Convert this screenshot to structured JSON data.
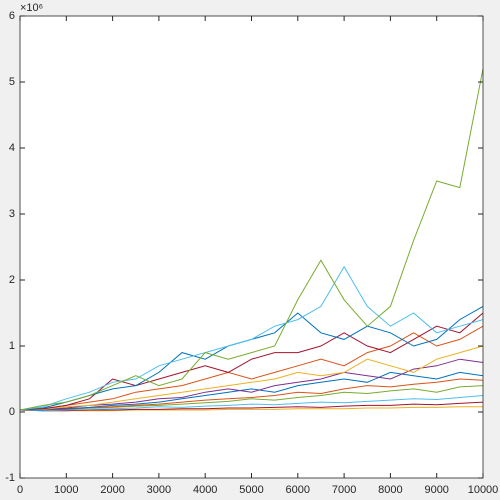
{
  "chart_data": {
    "type": "line",
    "y_exponent": "×10⁶",
    "x": [
      0,
      500,
      1000,
      1500,
      2000,
      2500,
      3000,
      3500,
      4000,
      4500,
      5000,
      5500,
      6000,
      6500,
      7000,
      7500,
      8000,
      8500,
      9000,
      9500,
      10000
    ],
    "series": [
      {
        "color": "#edb120",
        "values": [
          0.03,
          0.02,
          0.02,
          0.02,
          0.02,
          0.03,
          0.03,
          0.03,
          0.03,
          0.04,
          0.04,
          0.04,
          0.05,
          0.05,
          0.05,
          0.06,
          0.06,
          0.07,
          0.07,
          0.08,
          0.08
        ]
      },
      {
        "color": "#a2142f",
        "values": [
          0.03,
          0.02,
          0.02,
          0.03,
          0.03,
          0.04,
          0.04,
          0.05,
          0.05,
          0.06,
          0.06,
          0.07,
          0.08,
          0.07,
          0.09,
          0.1,
          0.1,
          0.12,
          0.11,
          0.13,
          0.15
        ]
      },
      {
        "color": "#4dbeee",
        "values": [
          0.03,
          0.02,
          0.03,
          0.04,
          0.05,
          0.06,
          0.08,
          0.07,
          0.09,
          0.1,
          0.12,
          0.11,
          0.13,
          0.15,
          0.14,
          0.16,
          0.18,
          0.2,
          0.19,
          0.22,
          0.25
        ]
      },
      {
        "color": "#77ac30",
        "values": [
          0.03,
          0.04,
          0.05,
          0.06,
          0.07,
          0.09,
          0.1,
          0.12,
          0.14,
          0.16,
          0.2,
          0.18,
          0.22,
          0.25,
          0.3,
          0.28,
          0.32,
          0.35,
          0.3,
          0.38,
          0.4
        ]
      },
      {
        "color": "#d95319",
        "values": [
          0.03,
          0.03,
          0.04,
          0.06,
          0.08,
          0.1,
          0.12,
          0.15,
          0.18,
          0.2,
          0.22,
          0.25,
          0.3,
          0.28,
          0.35,
          0.4,
          0.38,
          0.42,
          0.45,
          0.5,
          0.48
        ]
      },
      {
        "color": "#0072bd",
        "values": [
          0.03,
          0.03,
          0.05,
          0.07,
          0.1,
          0.12,
          0.15,
          0.2,
          0.25,
          0.3,
          0.35,
          0.3,
          0.4,
          0.45,
          0.5,
          0.45,
          0.6,
          0.55,
          0.5,
          0.6,
          0.55
        ]
      },
      {
        "color": "#7e2f8e",
        "values": [
          0.03,
          0.04,
          0.06,
          0.1,
          0.12,
          0.15,
          0.2,
          0.22,
          0.3,
          0.35,
          0.3,
          0.4,
          0.45,
          0.5,
          0.6,
          0.55,
          0.5,
          0.65,
          0.7,
          0.8,
          0.75
        ]
      },
      {
        "color": "#edb120",
        "values": [
          0.03,
          0.04,
          0.08,
          0.1,
          0.15,
          0.2,
          0.25,
          0.3,
          0.35,
          0.4,
          0.45,
          0.5,
          0.6,
          0.55,
          0.6,
          0.8,
          0.7,
          0.6,
          0.8,
          0.9,
          1.0
        ]
      },
      {
        "color": "#d95319",
        "values": [
          0.03,
          0.05,
          0.1,
          0.15,
          0.2,
          0.3,
          0.35,
          0.4,
          0.5,
          0.6,
          0.5,
          0.6,
          0.7,
          0.8,
          0.7,
          0.9,
          1.0,
          1.2,
          1.0,
          1.1,
          1.3
        ]
      },
      {
        "color": "#a2142f",
        "values": [
          0.03,
          0.05,
          0.1,
          0.2,
          0.5,
          0.4,
          0.5,
          0.6,
          0.7,
          0.6,
          0.8,
          0.9,
          0.9,
          1.0,
          1.2,
          1.0,
          0.9,
          1.1,
          1.3,
          1.2,
          1.5
        ]
      },
      {
        "color": "#0072bd",
        "values": [
          0.03,
          0.06,
          0.15,
          0.25,
          0.35,
          0.4,
          0.6,
          0.9,
          0.8,
          1.0,
          1.1,
          1.2,
          1.5,
          1.2,
          1.1,
          1.3,
          1.2,
          1.0,
          1.1,
          1.4,
          1.6
        ]
      },
      {
        "color": "#4dbeee",
        "values": [
          0.03,
          0.08,
          0.2,
          0.3,
          0.45,
          0.5,
          0.7,
          0.8,
          0.9,
          1.0,
          1.1,
          1.3,
          1.4,
          1.6,
          2.2,
          1.6,
          1.3,
          1.5,
          1.2,
          1.3,
          1.4
        ]
      },
      {
        "color": "#77ac30",
        "values": [
          0.03,
          0.1,
          0.15,
          0.25,
          0.4,
          0.55,
          0.4,
          0.5,
          0.9,
          0.8,
          0.9,
          1.0,
          1.7,
          2.3,
          1.7,
          1.3,
          1.6,
          2.6,
          3.5,
          3.4,
          5.2
        ]
      }
    ],
    "xlim": [
      0,
      10000
    ],
    "xticks": [
      0,
      1000,
      2000,
      3000,
      4000,
      5000,
      6000,
      7000,
      8000,
      9000,
      10000
    ],
    "ylim": [
      -1,
      6
    ],
    "yticks": [
      -1,
      0,
      1,
      2,
      3,
      4,
      5,
      6
    ]
  }
}
